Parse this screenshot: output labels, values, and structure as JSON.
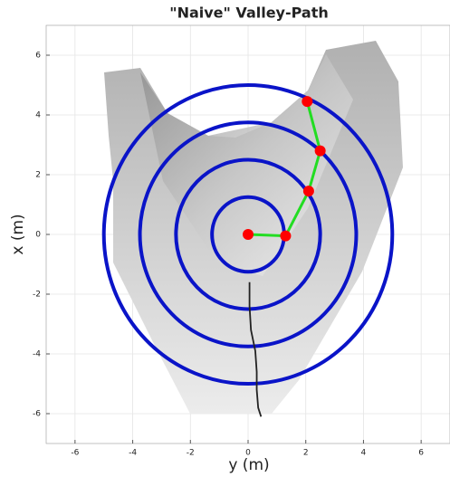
{
  "chart_data": {
    "type": "line",
    "title": "\"Naive\" Valley-Path",
    "xlabel": "y (m)",
    "ylabel": "x (m)",
    "xlim": [
      -7,
      7
    ],
    "ylim": [
      -7,
      7
    ],
    "xticks": [
      -6,
      -4,
      -2,
      0,
      2,
      4,
      6
    ],
    "yticks": [
      -6,
      -4,
      -2,
      0,
      2,
      4,
      6
    ],
    "grid": true,
    "circles": {
      "color": "#0a14c8",
      "radii": [
        1.25,
        2.5,
        3.75,
        5
      ]
    },
    "series": [
      {
        "color": "#222222",
        "x": [
          0.05,
          0.05,
          0.1,
          0.25,
          0.3,
          0.3,
          0.35,
          0.45
        ],
        "values": [
          -1.6,
          -2.4,
          -3.2,
          -3.9,
          -4.6,
          -5.2,
          -5.8,
          -6.1
        ]
      },
      {
        "color": "#22dd22",
        "marker_color": "#ff0000",
        "x": [
          0,
          1.3,
          2.1,
          2.5,
          2.05
        ],
        "values": [
          0,
          -0.05,
          1.45,
          2.8,
          4.45
        ]
      }
    ]
  }
}
